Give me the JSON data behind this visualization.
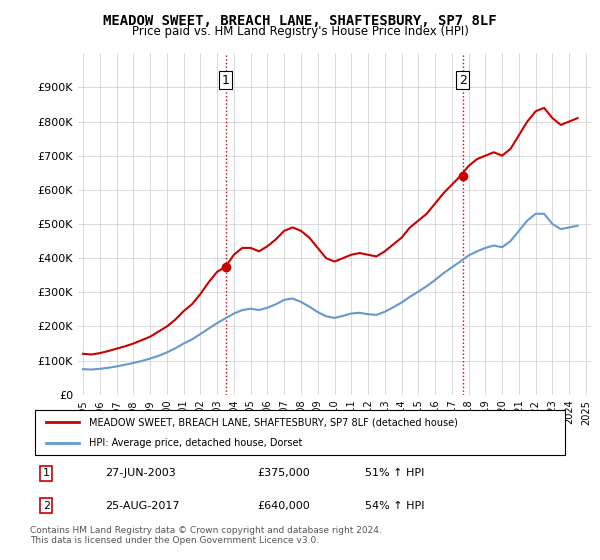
{
  "title": "MEADOW SWEET, BREACH LANE, SHAFTESBURY, SP7 8LF",
  "subtitle": "Price paid vs. HM Land Registry's House Price Index (HPI)",
  "legend_line1": "MEADOW SWEET, BREACH LANE, SHAFTESBURY, SP7 8LF (detached house)",
  "legend_line2": "HPI: Average price, detached house, Dorset",
  "footnote1": "Contains HM Land Registry data © Crown copyright and database right 2024.",
  "footnote2": "This data is licensed under the Open Government Licence v3.0.",
  "sale1_label": "1",
  "sale1_date": "27-JUN-2003",
  "sale1_price": "£375,000",
  "sale1_hpi": "51% ↑ HPI",
  "sale2_label": "2",
  "sale2_date": "25-AUG-2017",
  "sale2_price": "£640,000",
  "sale2_hpi": "54% ↑ HPI",
  "red_color": "#cc0000",
  "blue_color": "#6699cc",
  "background_color": "#ffffff",
  "ylim": [
    0,
    1000000
  ],
  "yticks": [
    0,
    100000,
    200000,
    300000,
    400000,
    500000,
    600000,
    700000,
    800000,
    900000
  ],
  "xmin": 1995,
  "xmax": 2025,
  "sale1_x": 2003.5,
  "sale1_y": 375000,
  "sale2_x": 2017.65,
  "sale2_y": 640000,
  "red_x": [
    1995.0,
    1995.5,
    1996.0,
    1996.5,
    1997.0,
    1997.5,
    1998.0,
    1998.5,
    1999.0,
    1999.5,
    2000.0,
    2000.5,
    2001.0,
    2001.5,
    2002.0,
    2002.5,
    2003.0,
    2003.5,
    2004.0,
    2004.5,
    2005.0,
    2005.5,
    2006.0,
    2006.5,
    2007.0,
    2007.5,
    2008.0,
    2008.5,
    2009.0,
    2009.5,
    2010.0,
    2010.5,
    2011.0,
    2011.5,
    2012.0,
    2012.5,
    2013.0,
    2013.5,
    2014.0,
    2014.5,
    2015.0,
    2015.5,
    2016.0,
    2016.5,
    2017.0,
    2017.5,
    2018.0,
    2018.5,
    2019.0,
    2019.5,
    2020.0,
    2020.5,
    2021.0,
    2021.5,
    2022.0,
    2022.5,
    2023.0,
    2023.5,
    2024.0,
    2024.5
  ],
  "red_y": [
    120000,
    118000,
    122000,
    128000,
    135000,
    142000,
    150000,
    160000,
    170000,
    185000,
    200000,
    220000,
    245000,
    265000,
    295000,
    330000,
    360000,
    375000,
    410000,
    430000,
    430000,
    420000,
    435000,
    455000,
    480000,
    490000,
    480000,
    460000,
    430000,
    400000,
    390000,
    400000,
    410000,
    415000,
    410000,
    405000,
    420000,
    440000,
    460000,
    490000,
    510000,
    530000,
    560000,
    590000,
    615000,
    640000,
    670000,
    690000,
    700000,
    710000,
    700000,
    720000,
    760000,
    800000,
    830000,
    840000,
    810000,
    790000,
    800000,
    810000
  ],
  "blue_x": [
    1995.0,
    1995.5,
    1996.0,
    1996.5,
    1997.0,
    1997.5,
    1998.0,
    1998.5,
    1999.0,
    1999.5,
    2000.0,
    2000.5,
    2001.0,
    2001.5,
    2002.0,
    2002.5,
    2003.0,
    2003.5,
    2004.0,
    2004.5,
    2005.0,
    2005.5,
    2006.0,
    2006.5,
    2007.0,
    2007.5,
    2008.0,
    2008.5,
    2009.0,
    2009.5,
    2010.0,
    2010.5,
    2011.0,
    2011.5,
    2012.0,
    2012.5,
    2013.0,
    2013.5,
    2014.0,
    2014.5,
    2015.0,
    2015.5,
    2016.0,
    2016.5,
    2017.0,
    2017.5,
    2018.0,
    2018.5,
    2019.0,
    2019.5,
    2020.0,
    2020.5,
    2021.0,
    2021.5,
    2022.0,
    2022.5,
    2023.0,
    2023.5,
    2024.0,
    2024.5
  ],
  "blue_y": [
    75000,
    74000,
    76000,
    79000,
    83000,
    88000,
    93000,
    99000,
    106000,
    114000,
    124000,
    136000,
    150000,
    162000,
    178000,
    194000,
    210000,
    224000,
    238000,
    248000,
    252000,
    248000,
    255000,
    265000,
    278000,
    282000,
    272000,
    258000,
    242000,
    230000,
    225000,
    231000,
    238000,
    240000,
    236000,
    234000,
    243000,
    256000,
    270000,
    287000,
    302000,
    318000,
    336000,
    356000,
    373000,
    390000,
    408000,
    420000,
    430000,
    437000,
    432000,
    450000,
    480000,
    510000,
    530000,
    530000,
    500000,
    485000,
    490000,
    495000
  ]
}
